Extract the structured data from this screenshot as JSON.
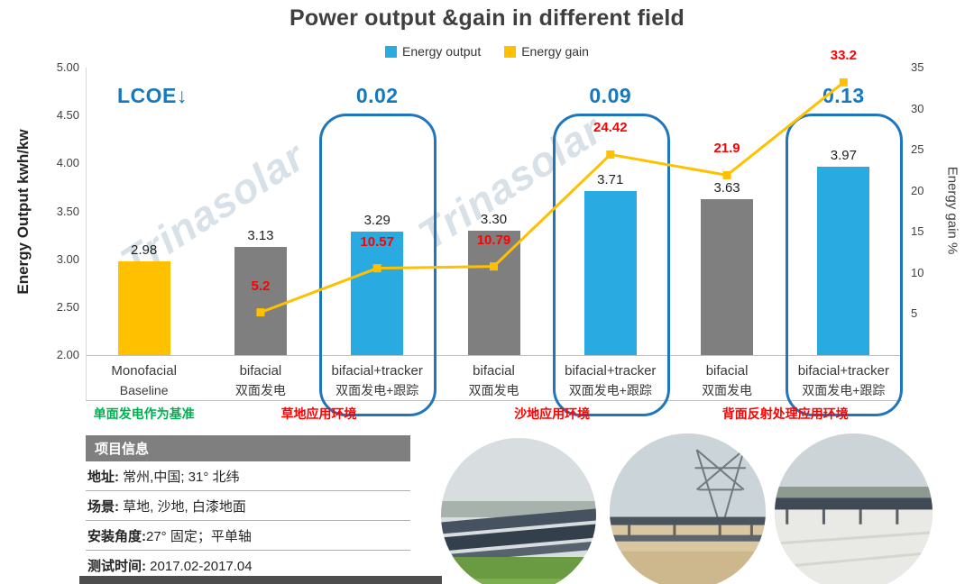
{
  "title": "Power output &gain in different field",
  "watermark": "Trinasolar",
  "colors": {
    "output_bar": "#29ABE2",
    "gain_line": "#FFC000",
    "monofacial_bar": "#FFC000",
    "bifacial_bar": "#7F7F7F",
    "gain_label": "#FF0000",
    "lcoe_blue": "#1778BE",
    "highlight_box": "#2076BC",
    "green_note": "#00B050",
    "red_note": "#FF0000"
  },
  "legend": {
    "output": "Energy output",
    "gain": "Energy gain"
  },
  "axes": {
    "left_title": "Energy Output  kwh/kw",
    "right_title": "Energy  gain  %",
    "left_ticks": [
      "5.00",
      "4.50",
      "4.00",
      "3.50",
      "3.00",
      "2.50",
      "2.00"
    ],
    "right_ticks": [
      "35",
      "30",
      "25",
      "20",
      "15",
      "10",
      "5"
    ]
  },
  "lcoe": {
    "label": "LCOE↓",
    "values": [
      "0.02",
      "0.09",
      "0.13"
    ]
  },
  "chart_data": {
    "type": "bar+line",
    "title": "Power output &gain in different field",
    "ylabel_left": "Energy Output kwh/kw",
    "ylabel_right": "Energy gain %",
    "legend_position": "top",
    "categories": [
      {
        "en": "Monofacial",
        "cn": "Baseline",
        "bar": "monofacial",
        "highlight": false
      },
      {
        "en": "bifacial",
        "cn": "双面发电",
        "bar": "bifacial",
        "highlight": false
      },
      {
        "en": "bifacial+tracker",
        "cn": "双面发电+跟踪",
        "bar": "tracker",
        "highlight": true
      },
      {
        "en": "bifacial",
        "cn": "双面发电",
        "bar": "bifacial",
        "highlight": false
      },
      {
        "en": "bifacial+tracker",
        "cn": "双面发电+跟踪",
        "bar": "tracker",
        "highlight": true
      },
      {
        "en": "bifacial",
        "cn": "双面发电",
        "bar": "bifacial",
        "highlight": false
      },
      {
        "en": "bifacial+tracker",
        "cn": "双面发电+跟踪",
        "bar": "tracker",
        "highlight": true
      }
    ],
    "series": [
      {
        "name": "Energy output",
        "type": "bar",
        "axis": "left",
        "values": [
          2.98,
          3.13,
          3.29,
          3.3,
          3.71,
          3.63,
          3.97
        ]
      },
      {
        "name": "Energy gain",
        "type": "line",
        "axis": "right",
        "values": [
          null,
          5.2,
          10.57,
          10.79,
          24.42,
          21.9,
          33.2
        ]
      }
    ],
    "left_axis": {
      "min": 2.0,
      "max": 5.0,
      "step": 0.5
    },
    "right_axis": {
      "min": 0,
      "max": 35,
      "step": 5
    }
  },
  "group_notes": [
    {
      "text": "单面发电作为基准",
      "color": "#00B050",
      "slot": 0,
      "span": 1
    },
    {
      "text": "草地应用环境",
      "color": "#FF0000",
      "slot": 1,
      "span": 2
    },
    {
      "text": "沙地应用环境",
      "color": "#FF0000",
      "slot": 3,
      "span": 2
    },
    {
      "text": "背面反射处理应用环境",
      "color": "#FF0000",
      "slot": 5,
      "span": 2
    }
  ],
  "info_table": {
    "header": "项目信息",
    "rows": [
      {
        "label": "地址:",
        "value": " 常州,中国; 31° 北纬"
      },
      {
        "label": "场景:",
        "value": " 草地, 沙地, 白漆地面"
      },
      {
        "label": "安装角度:",
        "value": "27° 固定；平单轴"
      },
      {
        "label": "测试时间:",
        "value": " 2017.02-2017.04"
      }
    ]
  },
  "photos": [
    {
      "name": "grass-field-site"
    },
    {
      "name": "sand-field-site"
    },
    {
      "name": "white-painted-ground-site"
    }
  ]
}
